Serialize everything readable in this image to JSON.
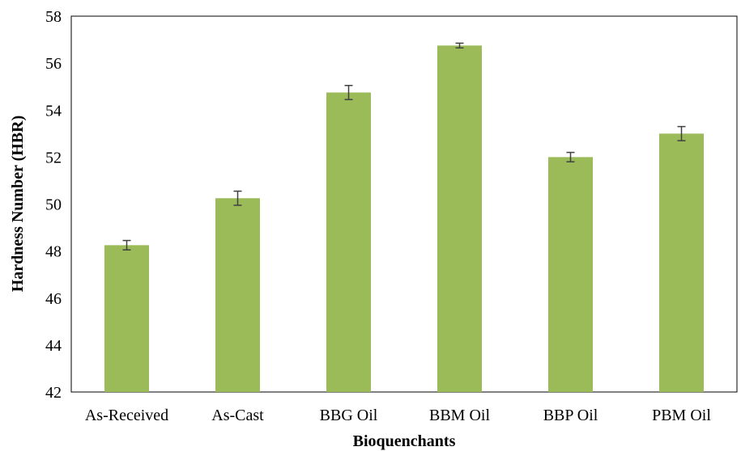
{
  "chart_data": {
    "type": "bar",
    "title": "",
    "xlabel": "Bioquenchants",
    "ylabel": "Hardness  Number (HBR)",
    "categories": [
      "As-Received",
      "As-Cast",
      "BBG Oil",
      "BBM Oil",
      "BBP Oil",
      "PBM Oil"
    ],
    "values": [
      48.25,
      50.25,
      54.75,
      56.75,
      52.0,
      53.0
    ],
    "errors": [
      0.2,
      0.3,
      0.3,
      0.1,
      0.2,
      0.3
    ],
    "ylim": [
      42,
      58
    ],
    "yticks": [
      42,
      44,
      46,
      48,
      50,
      52,
      54,
      56,
      58
    ],
    "grid": false,
    "bar_color": "#9bbb59",
    "error_color": "#404040"
  }
}
